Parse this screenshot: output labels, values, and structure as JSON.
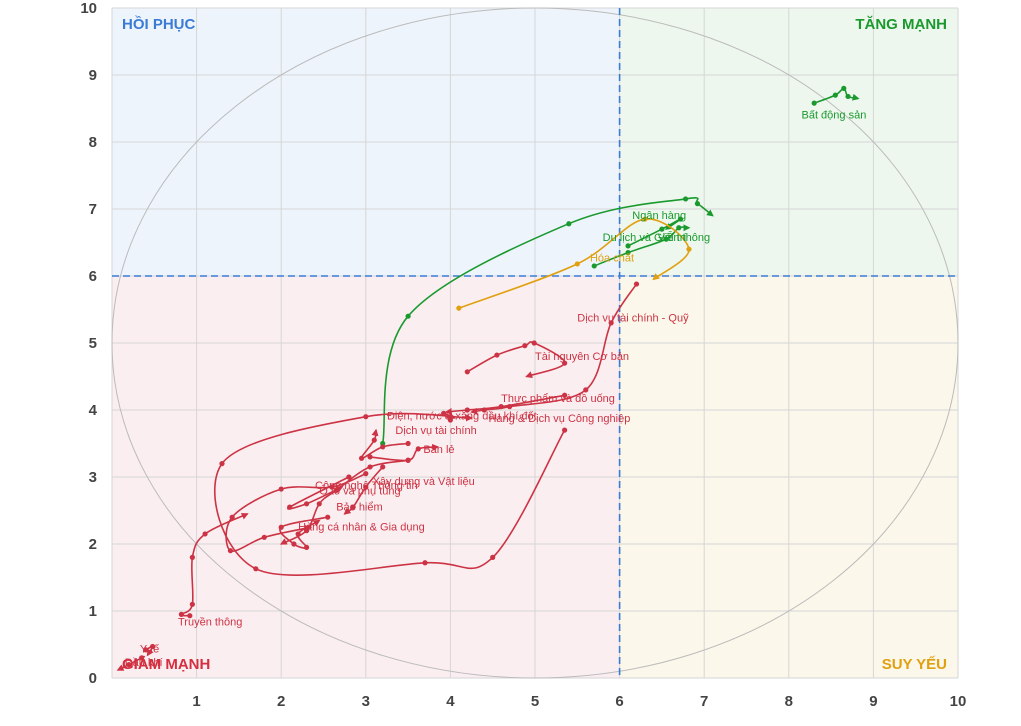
{
  "chart_data": {
    "type": "scatter",
    "title": "",
    "xlabel": "",
    "ylabel": "",
    "xlim": [
      0,
      10
    ],
    "ylim": [
      0,
      10
    ],
    "x_ticks": [
      1,
      2,
      3,
      4,
      5,
      6,
      7,
      8,
      9,
      10
    ],
    "y_ticks": [
      0,
      1,
      2,
      3,
      4,
      5,
      6,
      7,
      8,
      9,
      10
    ],
    "grid": true,
    "reference_lines": {
      "x": 6,
      "y": 6
    },
    "quadrants": {
      "top_left": {
        "label": "HỒI PHỤC",
        "text_color": "#3a7bd5",
        "fill": "#eef4fc"
      },
      "top_right": {
        "label": "TĂNG MẠNH",
        "text_color": "#1a9a2e",
        "fill": "#eef7ee"
      },
      "bottom_left": {
        "label": "GIẢM MẠNH",
        "text_color": "#d32f3f",
        "fill": "#fbeef0"
      },
      "bottom_right": {
        "label": "SUY YẾU",
        "text_color": "#e0a010",
        "fill": "#fbf7ea"
      }
    },
    "colors": {
      "strong": "#1a9a2e",
      "weak": "#e0a010",
      "falling": "#cc3344",
      "ellipse": "#bbbbbb",
      "refline": "#3a7bd5"
    },
    "series": [
      {
        "name": "Bất động sản",
        "color": "strong",
        "points": [
          [
            8.3,
            8.58
          ],
          [
            8.55,
            8.7
          ],
          [
            8.65,
            8.8
          ],
          [
            8.7,
            8.68
          ],
          [
            8.82,
            8.65
          ]
        ],
        "label_at": [
          8.15,
          8.35
        ]
      },
      {
        "name": "Du lịch và Giải trí",
        "color": "strong",
        "points": [
          [
            3.2,
            3.5
          ],
          [
            3.5,
            5.4
          ],
          [
            5.4,
            6.78
          ],
          [
            6.78,
            7.15
          ],
          [
            6.92,
            7.08
          ],
          [
            7.1,
            6.9
          ]
        ],
        "label_at": [
          5.8,
          6.52
        ]
      },
      {
        "name": "Ngân hàng",
        "color": "strong",
        "points": [
          [
            5.7,
            6.15
          ],
          [
            6.1,
            6.35
          ],
          [
            6.55,
            6.55
          ],
          [
            6.7,
            6.72
          ],
          [
            6.82,
            6.72
          ]
        ],
        "label_at": [
          6.15,
          6.85
        ]
      },
      {
        "name": "Viễn thông",
        "color": "strong",
        "points": [
          [
            6.1,
            6.45
          ],
          [
            6.5,
            6.7
          ],
          [
            6.72,
            6.85
          ],
          [
            6.55,
            6.7
          ]
        ],
        "label_at": [
          6.45,
          6.52
        ]
      },
      {
        "name": "Hóa chất",
        "color": "weak",
        "points": [
          [
            4.1,
            5.52
          ],
          [
            5.5,
            6.18
          ],
          [
            6.3,
            6.85
          ],
          [
            6.82,
            6.4
          ],
          [
            6.4,
            5.95
          ]
        ],
        "label_at": [
          5.65,
          6.22
        ]
      },
      {
        "name": "Dịch vụ tài chính - Quỹ",
        "color": "falling",
        "points": [
          [
            6.2,
            5.88
          ],
          [
            5.9,
            5.3
          ],
          [
            5.6,
            4.3
          ],
          [
            4.7,
            4.05
          ],
          [
            4.4,
            4.0
          ],
          [
            4.25,
            3.97
          ]
        ],
        "label_at": [
          5.5,
          5.32
        ]
      },
      {
        "name": "Tài nguyên Cơ bản",
        "color": "falling",
        "points": [
          [
            4.2,
            4.57
          ],
          [
            4.55,
            4.82
          ],
          [
            4.88,
            4.96
          ],
          [
            4.99,
            5.0
          ],
          [
            5.35,
            4.7
          ],
          [
            4.9,
            4.5
          ]
        ],
        "label_at": [
          5.0,
          4.75
        ]
      },
      {
        "name": "Thực phẩm và đồ uống",
        "color": "falling",
        "points": [
          [
            5.35,
            4.22
          ],
          [
            4.6,
            4.05
          ],
          [
            4.2,
            4.0
          ],
          [
            3.95,
            3.97
          ]
        ],
        "label_at": [
          4.6,
          4.12
        ]
      },
      {
        "name": "Hàng & Dịch vụ Công nghiệp",
        "color": "falling",
        "points": [
          [
            5.35,
            3.7
          ],
          [
            4.5,
            1.8
          ],
          [
            3.7,
            1.72
          ],
          [
            1.7,
            1.63
          ],
          [
            1.3,
            3.2
          ],
          [
            3.0,
            3.9
          ],
          [
            4.25,
            3.88
          ]
        ],
        "label_at": [
          4.45,
          3.82
        ]
      },
      {
        "name": "Điện, nước & xăng dầu khí đốt",
        "color": "falling",
        "points": [
          [
            4.0,
            3.85
          ],
          [
            3.92,
            3.95
          ],
          [
            4.05,
            3.88
          ]
        ],
        "label_at": [
          3.25,
          3.86
        ]
      },
      {
        "name": "Dịch vụ tài chính",
        "color": "falling",
        "points": [
          [
            3.5,
            3.5
          ],
          [
            3.2,
            3.45
          ],
          [
            2.95,
            3.28
          ],
          [
            3.1,
            3.55
          ],
          [
            3.12,
            3.7
          ]
        ],
        "label_at": [
          3.35,
          3.64
        ]
      },
      {
        "name": "Bán lẻ",
        "color": "falling",
        "points": [
          [
            3.05,
            3.3
          ],
          [
            3.5,
            3.25
          ],
          [
            3.62,
            3.42
          ],
          [
            3.85,
            3.45
          ]
        ],
        "label_at": [
          3.68,
          3.36
        ]
      },
      {
        "name": "Xây dựng và Vật liệu",
        "color": "falling",
        "points": [
          [
            3.5,
            3.25
          ],
          [
            3.05,
            3.15
          ],
          [
            2.65,
            2.8
          ],
          [
            2.45,
            2.6
          ],
          [
            2.3,
            2.2
          ],
          [
            2.0,
            2.0
          ]
        ],
        "label_at": [
          3.08,
          2.88
        ]
      },
      {
        "name": "Công nghệ Thông tin",
        "color": "falling",
        "points": [
          [
            2.8,
            3.0
          ],
          [
            2.1,
            2.55
          ],
          [
            2.3,
            2.6
          ],
          [
            2.72,
            2.85
          ]
        ],
        "label_at": [
          2.4,
          2.82
        ]
      },
      {
        "name": "Ô tô và phụ tùng",
        "color": "falling",
        "points": [
          [
            3.0,
            3.05
          ],
          [
            2.6,
            2.85
          ],
          [
            2.0,
            2.82
          ],
          [
            1.42,
            2.4
          ],
          [
            1.4,
            1.9
          ],
          [
            1.8,
            2.1
          ],
          [
            2.35,
            2.25
          ]
        ],
        "label_at": [
          2.45,
          2.74
        ]
      },
      {
        "name": "Bảo hiểm",
        "color": "falling",
        "points": [
          [
            3.2,
            3.15
          ],
          [
            3.0,
            2.85
          ],
          [
            2.85,
            2.55
          ],
          [
            2.75,
            2.45
          ]
        ],
        "label_at": [
          2.65,
          2.5
        ]
      },
      {
        "name": "Hàng cá nhân & Gia dụng",
        "color": "falling",
        "points": [
          [
            2.55,
            2.4
          ],
          [
            2.0,
            2.25
          ],
          [
            2.15,
            2.0
          ],
          [
            2.3,
            1.95
          ],
          [
            2.2,
            2.15
          ],
          [
            2.45,
            2.35
          ]
        ],
        "label_at": [
          2.2,
          2.2
        ]
      },
      {
        "name": "Truyền thông",
        "color": "falling",
        "points": [
          [
            0.92,
            0.93
          ],
          [
            0.82,
            0.95
          ],
          [
            0.95,
            1.1
          ],
          [
            0.95,
            1.8
          ],
          [
            1.1,
            2.15
          ],
          [
            1.6,
            2.45
          ]
        ],
        "label_at": [
          0.78,
          0.78
        ]
      },
      {
        "name": "Y tế",
        "color": "falling",
        "points": [
          [
            0.4,
            0.42
          ],
          [
            0.48,
            0.47
          ],
          [
            0.42,
            0.34
          ]
        ],
        "label_at": [
          0.33,
          0.38
        ]
      },
      {
        "name": "Dầu khí",
        "color": "falling",
        "points": [
          [
            0.35,
            0.3
          ],
          [
            0.2,
            0.2
          ],
          [
            0.07,
            0.12
          ]
        ],
        "label_at": [
          0.15,
          0.18
        ]
      }
    ]
  }
}
